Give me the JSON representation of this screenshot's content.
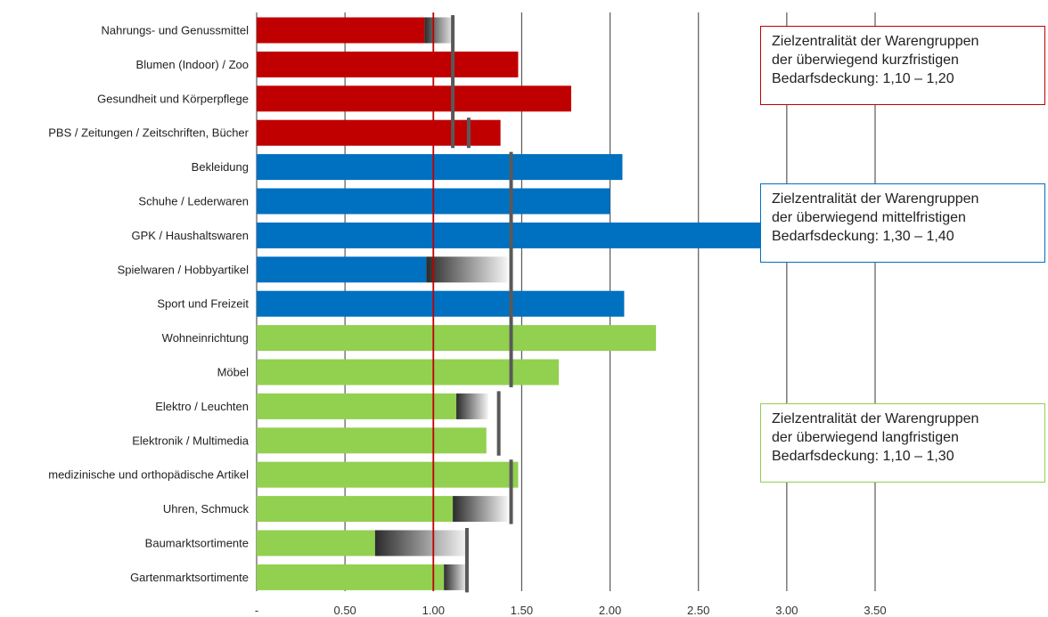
{
  "chart_data": {
    "type": "bar",
    "orientation": "horizontal",
    "categories": [
      "Nahrungs- und Genussmittel",
      "Blumen (Indoor) / Zoo",
      "Gesundheit und Körperpflege",
      "PBS / Zeitungen / Zeitschriften, Bücher",
      "Bekleidung",
      "Schuhe / Lederwaren",
      "GPK / Haushaltswaren",
      "Spielwaren / Hobbyartikel",
      "Sport und Freizeit",
      "Wohneinrichtung",
      "Möbel",
      "Elektro / Leuchten",
      "Elektronik / Multimedia",
      "medizinische und orthopädische Artikel",
      "Uhren, Schmuck",
      "Baumarktsortimente",
      "Gartenmarktsortimente"
    ],
    "groups": [
      "kurz",
      "kurz",
      "kurz",
      "kurz",
      "mittel",
      "mittel",
      "mittel",
      "mittel",
      "mittel",
      "lang",
      "lang",
      "lang",
      "lang",
      "lang",
      "lang",
      "lang",
      "lang"
    ],
    "values": [
      0.95,
      1.48,
      1.78,
      1.38,
      2.07,
      2.0,
      3.5,
      0.96,
      2.08,
      2.26,
      1.71,
      1.13,
      1.3,
      1.48,
      1.11,
      0.67,
      1.06
    ],
    "gap_to_target": [
      1.12,
      null,
      null,
      null,
      null,
      null,
      null,
      1.42,
      null,
      null,
      null,
      1.31,
      null,
      null,
      1.42,
      1.19,
      1.19
    ],
    "target_markers": [
      {
        "categories": [
          0,
          3
        ],
        "value": 1.11
      },
      {
        "categories": [
          3,
          3
        ],
        "value": 1.2
      },
      {
        "categories": [
          4,
          10
        ],
        "value": 1.44
      },
      {
        "categories": [
          11,
          12
        ],
        "value": 1.37
      },
      {
        "categories": [
          13,
          14
        ],
        "value": 1.44
      },
      {
        "categories": [
          15,
          16
        ],
        "value": 1.19
      }
    ],
    "reference_line": {
      "value": 1.0,
      "color": "#c00000"
    },
    "x_ticks": [
      {
        "value": 0,
        "label": "-"
      },
      {
        "value": 0.5,
        "label": "0.50"
      },
      {
        "value": 1.0,
        "label": "1.00"
      },
      {
        "value": 1.5,
        "label": "1.50"
      },
      {
        "value": 2.0,
        "label": "2.00"
      },
      {
        "value": 2.5,
        "label": "2.50"
      },
      {
        "value": 3.0,
        "label": "3.00"
      },
      {
        "value": 3.5,
        "label": "3.50"
      }
    ],
    "xlim": [
      0,
      3.5
    ],
    "grid": "vertical",
    "colors": {
      "kurz": "#c00000",
      "mittel": "#0070c0",
      "lang": "#92d050",
      "marker": "#595959",
      "grid": "#595959",
      "ref_tick_label": "#c00000"
    },
    "annotations": [
      {
        "group": "kurz",
        "lines": [
          "Zielzentralität der Warengruppen",
          "der überwiegend kurzfristigen",
          "Bedarfsdeckung: 1,10 – 1,20"
        ],
        "border_color": "#c00000"
      },
      {
        "group": "mittel",
        "lines": [
          "Zielzentralität der Warengruppen",
          "der überwiegend mittelfristigen",
          "Bedarfsdeckung: 1,30 – 1,40"
        ],
        "border_color": "#0070c0"
      },
      {
        "group": "lang",
        "lines": [
          "Zielzentralität der Warengruppen",
          "der überwiegend langfristigen",
          "Bedarfsdeckung: 1,10 – 1,30"
        ],
        "border_color": "#92d050"
      }
    ]
  }
}
